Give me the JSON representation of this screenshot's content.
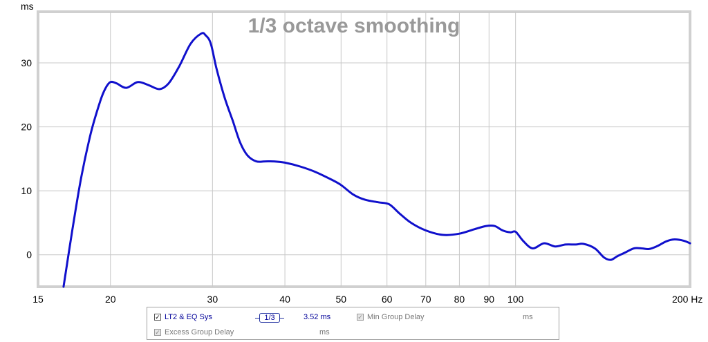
{
  "chart_data": {
    "type": "line",
    "title": "1/3 octave smoothing",
    "ylabel": "ms",
    "xunit": "Hz",
    "xscale": "log",
    "xlim": [
      15,
      200
    ],
    "ylim": [
      -5,
      38
    ],
    "xticks": [
      15,
      20,
      30,
      40,
      50,
      60,
      70,
      80,
      90,
      100,
      200
    ],
    "xtick_labels": [
      "15",
      "20",
      "30",
      "40",
      "50",
      "60",
      "70",
      "80",
      "90",
      "100",
      "200 Hz"
    ],
    "yticks": [
      0,
      10,
      20,
      30
    ],
    "ytick_labels": [
      "0",
      "10",
      "20",
      "30"
    ],
    "grid": true,
    "series": [
      {
        "name": "LT2 & EQ Sys",
        "color": "#1010cc",
        "x": [
          16.6,
          17.2,
          17.8,
          18.5,
          19.2,
          19.6,
          20.0,
          20.5,
          21.3,
          22.3,
          23.3,
          24.3,
          25.2,
          26.3,
          27.5,
          28.7,
          29.2,
          29.8,
          30.5,
          31.5,
          32.5,
          33.5,
          34.5,
          35.7,
          37.0,
          38.2,
          40.0,
          42.5,
          45.0,
          48.0,
          50.0,
          52.5,
          55.0,
          58.0,
          60.5,
          63.0,
          66.0,
          70.0,
          75.0,
          80.0,
          85.0,
          89.0,
          92.0,
          95.0,
          98.0,
          100.0,
          103.0,
          107.0,
          112.0,
          117.0,
          122.0,
          127.0,
          131.0,
          137.0,
          142.0,
          146.0,
          150.0,
          155.0,
          160.0,
          165.0,
          170.0,
          176.0,
          182.0,
          188.0,
          195.0,
          200.0
        ],
        "y": [
          -5,
          4,
          12,
          19,
          24,
          26,
          27,
          26.8,
          26.1,
          27.0,
          26.5,
          25.9,
          26.8,
          29.5,
          33,
          34.6,
          34.3,
          33,
          29,
          24.5,
          21,
          17.5,
          15.5,
          14.6,
          14.6,
          14.6,
          14.4,
          13.8,
          13,
          11.8,
          10.9,
          9.4,
          8.6,
          8.2,
          7.9,
          6.5,
          5.0,
          3.8,
          3.1,
          3.3,
          4.0,
          4.5,
          4.5,
          3.8,
          3.5,
          3.6,
          2.2,
          1.0,
          1.8,
          1.3,
          1.6,
          1.6,
          1.7,
          1.0,
          -0.4,
          -0.8,
          -0.2,
          0.4,
          1.0,
          1.0,
          0.9,
          1.4,
          2.1,
          2.4,
          2.2,
          1.8
        ]
      }
    ]
  },
  "legend": {
    "series_label": "LT2 & EQ Sys",
    "series_checked": "✓",
    "smoothing_label": "1/3",
    "series_value": "3.52 ms",
    "min_group_label": "Min Group Delay",
    "min_group_checked": "✓",
    "min_group_value": "ms",
    "excess_group_label": "Excess Group Delay",
    "excess_group_checked": "✓",
    "excess_group_value": "ms"
  }
}
